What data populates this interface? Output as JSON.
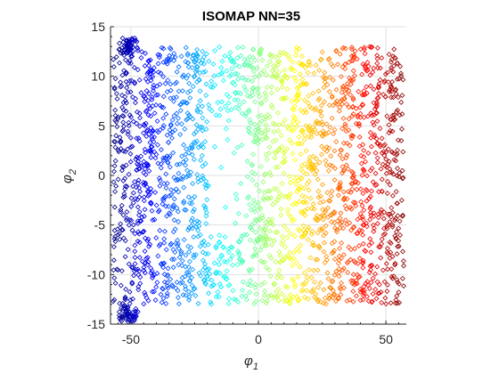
{
  "chart_data": {
    "type": "scatter",
    "title": "ISOMAP NN=35",
    "xlabel_main": "φ",
    "xlabel_sub": "1",
    "ylabel_main": "φ",
    "ylabel_sub": "2",
    "xlim": [
      -58,
      58
    ],
    "ylim": [
      -15,
      15
    ],
    "xticks": [
      -50,
      0,
      50
    ],
    "xtick_labels": [
      "-50",
      "0",
      "50"
    ],
    "yticks": [
      -15,
      -10,
      -5,
      0,
      5,
      10,
      15
    ],
    "ytick_labels": [
      "-15",
      "-10",
      "-5",
      "0",
      "5",
      "10",
      "15"
    ],
    "grid": true,
    "marker": "diamond",
    "colormap": "jet (colored by phi_1)",
    "point_region": {
      "x_range": [
        -57,
        57
      ],
      "y_range": [
        -13,
        13
      ],
      "hole": {
        "x_range": [
          -20,
          -5
        ],
        "y_range": [
          -6,
          6
        ]
      },
      "dark_clusters": [
        {
          "x": -51,
          "y": 13
        },
        {
          "x": -51,
          "y": -14
        }
      ]
    },
    "colors": {
      "low": "#00008f",
      "mid": "#7fff7f",
      "high": "#800000"
    }
  }
}
